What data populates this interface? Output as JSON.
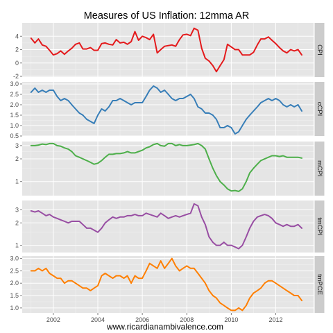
{
  "chart_data": {
    "type": "line",
    "title": "Measures of US Inflation: 12mma AR",
    "caption": "www.ricardianambivalence.com",
    "xlabel": "",
    "ylabel": "",
    "x_tick_labels": [
      "2002",
      "2004",
      "2006",
      "2008",
      "2010",
      "2012"
    ],
    "xlim": [
      2000.6,
      2013.7
    ],
    "grid": true,
    "facets": [
      {
        "name": "CPI",
        "color": "#e41a1c",
        "log_scale": false,
        "ylim": [
          -2.1,
          6.0
        ],
        "y_ticks": [
          -2,
          0,
          2,
          4
        ],
        "y_tick_labels": [
          "-2",
          "0",
          "2",
          "4"
        ],
        "x": [
          2001.0,
          2001.17,
          2001.33,
          2001.5,
          2001.67,
          2001.83,
          2002.0,
          2002.17,
          2002.33,
          2002.5,
          2002.67,
          2002.83,
          2003.0,
          2003.17,
          2003.33,
          2003.5,
          2003.67,
          2003.83,
          2004.0,
          2004.17,
          2004.33,
          2004.5,
          2004.67,
          2004.83,
          2005.0,
          2005.17,
          2005.33,
          2005.5,
          2005.67,
          2005.83,
          2006.0,
          2006.17,
          2006.33,
          2006.5,
          2006.67,
          2006.83,
          2007.0,
          2007.17,
          2007.33,
          2007.5,
          2007.67,
          2007.83,
          2008.0,
          2008.17,
          2008.33,
          2008.5,
          2008.67,
          2008.83,
          2009.0,
          2009.17,
          2009.33,
          2009.5,
          2009.67,
          2009.83,
          2010.0,
          2010.17,
          2010.33,
          2010.5,
          2010.67,
          2010.83,
          2011.0,
          2011.17,
          2011.33,
          2011.5,
          2011.67,
          2011.83,
          2012.0,
          2012.17,
          2012.33,
          2012.5,
          2012.67,
          2012.83,
          2013.0,
          2013.17
        ],
        "y": [
          3.7,
          3.0,
          3.6,
          2.7,
          2.5,
          1.9,
          1.2,
          1.4,
          1.8,
          1.3,
          1.8,
          2.2,
          2.8,
          3.0,
          2.1,
          2.1,
          2.3,
          1.9,
          1.9,
          2.9,
          3.0,
          2.8,
          2.7,
          3.5,
          3.0,
          3.1,
          2.8,
          3.2,
          4.7,
          3.4,
          4.0,
          3.8,
          3.5,
          4.3,
          1.5,
          2.0,
          2.5,
          2.6,
          2.7,
          2.5,
          3.5,
          4.2,
          4.3,
          4.1,
          5.2,
          4.9,
          2.2,
          0.7,
          0.3,
          -0.4,
          -1.3,
          -0.4,
          0.5,
          2.8,
          2.4,
          2.0,
          2.0,
          1.2,
          1.2,
          1.2,
          1.6,
          2.7,
          3.6,
          3.6,
          3.9,
          3.4,
          2.9,
          2.3,
          1.8,
          1.5,
          2.0,
          1.8,
          2.0,
          1.2
        ]
      },
      {
        "name": "cCPI",
        "color": "#377eb8",
        "log_scale": false,
        "ylim": [
          0.5,
          3.1
        ],
        "y_ticks": [
          0.5,
          1.0,
          1.5,
          2.0,
          2.5,
          3.0
        ],
        "y_tick_labels": [
          "0.5",
          "1.0",
          "1.5",
          "2.0",
          "2.5",
          "3.0"
        ],
        "x": [
          2001.0,
          2001.17,
          2001.33,
          2001.5,
          2001.67,
          2001.83,
          2002.0,
          2002.17,
          2002.33,
          2002.5,
          2002.67,
          2002.83,
          2003.0,
          2003.17,
          2003.33,
          2003.5,
          2003.67,
          2003.83,
          2004.0,
          2004.17,
          2004.33,
          2004.5,
          2004.67,
          2004.83,
          2005.0,
          2005.17,
          2005.33,
          2005.5,
          2005.67,
          2005.83,
          2006.0,
          2006.17,
          2006.33,
          2006.5,
          2006.67,
          2006.83,
          2007.0,
          2007.17,
          2007.33,
          2007.5,
          2007.67,
          2007.83,
          2008.0,
          2008.17,
          2008.33,
          2008.5,
          2008.67,
          2008.83,
          2009.0,
          2009.17,
          2009.33,
          2009.5,
          2009.67,
          2009.83,
          2010.0,
          2010.17,
          2010.33,
          2010.5,
          2010.67,
          2010.83,
          2011.0,
          2011.17,
          2011.33,
          2011.5,
          2011.67,
          2011.83,
          2012.0,
          2012.17,
          2012.33,
          2012.5,
          2012.67,
          2012.83,
          2013.0,
          2013.17
        ],
        "y": [
          2.6,
          2.8,
          2.6,
          2.7,
          2.6,
          2.7,
          2.7,
          2.4,
          2.2,
          2.3,
          2.2,
          2.0,
          1.8,
          1.6,
          1.5,
          1.3,
          1.2,
          1.1,
          1.5,
          1.8,
          1.7,
          1.9,
          2.2,
          2.2,
          2.3,
          2.2,
          2.1,
          2.0,
          2.1,
          2.1,
          2.1,
          2.4,
          2.7,
          2.9,
          2.8,
          2.6,
          2.7,
          2.5,
          2.3,
          2.2,
          2.3,
          2.3,
          2.4,
          2.5,
          2.3,
          1.9,
          1.8,
          1.6,
          1.6,
          1.5,
          1.3,
          0.9,
          0.9,
          1.0,
          0.9,
          0.6,
          0.7,
          1.0,
          1.3,
          1.5,
          1.7,
          1.9,
          2.1,
          2.2,
          2.3,
          2.2,
          2.3,
          2.2,
          2.0,
          1.9,
          2.0,
          1.9,
          2.0,
          1.7
        ]
      },
      {
        "name": "mCPI",
        "color": "#4daf4a",
        "log_scale": true,
        "ylim": [
          0.65,
          3.4
        ],
        "y_ticks": [
          1,
          2,
          3
        ],
        "y_tick_labels": [
          "1",
          "2",
          "3"
        ],
        "x": [
          2001.0,
          2001.17,
          2001.33,
          2001.5,
          2001.67,
          2001.83,
          2002.0,
          2002.17,
          2002.33,
          2002.5,
          2002.67,
          2002.83,
          2003.0,
          2003.17,
          2003.33,
          2003.5,
          2003.67,
          2003.83,
          2004.0,
          2004.17,
          2004.33,
          2004.5,
          2004.67,
          2004.83,
          2005.0,
          2005.17,
          2005.33,
          2005.5,
          2005.67,
          2005.83,
          2006.0,
          2006.17,
          2006.33,
          2006.5,
          2006.67,
          2006.83,
          2007.0,
          2007.17,
          2007.33,
          2007.5,
          2007.67,
          2007.83,
          2008.0,
          2008.17,
          2008.33,
          2008.5,
          2008.67,
          2008.83,
          2009.0,
          2009.17,
          2009.33,
          2009.5,
          2009.67,
          2009.83,
          2010.0,
          2010.17,
          2010.33,
          2010.5,
          2010.67,
          2010.83,
          2011.0,
          2011.17,
          2011.33,
          2011.5,
          2011.67,
          2011.83,
          2012.0,
          2012.17,
          2012.33,
          2012.5,
          2012.67,
          2012.83,
          2013.0,
          2013.17
        ],
        "y": [
          3.0,
          3.0,
          3.05,
          3.15,
          3.1,
          3.2,
          3.2,
          3.0,
          2.95,
          2.8,
          2.7,
          2.5,
          2.2,
          2.1,
          2.0,
          1.9,
          1.8,
          1.7,
          1.75,
          1.9,
          2.1,
          2.3,
          2.3,
          2.35,
          2.35,
          2.4,
          2.5,
          2.4,
          2.4,
          2.5,
          2.6,
          2.8,
          2.9,
          3.1,
          3.2,
          3.0,
          2.95,
          3.2,
          3.2,
          3.0,
          3.1,
          3.0,
          3.0,
          3.05,
          3.1,
          3.2,
          3.0,
          2.7,
          2.0,
          1.5,
          1.2,
          1.0,
          0.9,
          0.8,
          0.75,
          0.76,
          0.74,
          0.8,
          1.0,
          1.3,
          1.5,
          1.7,
          1.9,
          2.0,
          2.1,
          2.2,
          2.2,
          2.15,
          2.2,
          2.1,
          2.1,
          2.1,
          2.1,
          2.05
        ]
      },
      {
        "name": "tmCPI",
        "color": "#984ea3",
        "log_scale": true,
        "ylim": [
          0.8,
          4.0
        ],
        "y_ticks": [
          1,
          2,
          3
        ],
        "y_tick_labels": [
          "1",
          "2",
          "3"
        ],
        "x": [
          2001.0,
          2001.17,
          2001.33,
          2001.5,
          2001.67,
          2001.83,
          2002.0,
          2002.17,
          2002.33,
          2002.5,
          2002.67,
          2002.83,
          2003.0,
          2003.17,
          2003.33,
          2003.5,
          2003.67,
          2003.83,
          2004.0,
          2004.17,
          2004.33,
          2004.5,
          2004.67,
          2004.83,
          2005.0,
          2005.17,
          2005.33,
          2005.5,
          2005.67,
          2005.83,
          2006.0,
          2006.17,
          2006.33,
          2006.5,
          2006.67,
          2006.83,
          2007.0,
          2007.17,
          2007.33,
          2007.5,
          2007.67,
          2007.83,
          2008.0,
          2008.17,
          2008.33,
          2008.5,
          2008.67,
          2008.83,
          2009.0,
          2009.17,
          2009.33,
          2009.5,
          2009.67,
          2009.83,
          2010.0,
          2010.17,
          2010.33,
          2010.5,
          2010.67,
          2010.83,
          2011.0,
          2011.17,
          2011.33,
          2011.5,
          2011.67,
          2011.83,
          2012.0,
          2012.17,
          2012.33,
          2012.5,
          2012.67,
          2012.83,
          2013.0,
          2013.17
        ],
        "y": [
          2.9,
          2.8,
          2.9,
          2.7,
          2.5,
          2.6,
          2.4,
          2.3,
          2.2,
          2.1,
          2.0,
          2.1,
          2.1,
          2.1,
          1.9,
          1.7,
          1.7,
          1.6,
          1.5,
          1.7,
          2.0,
          2.2,
          2.4,
          2.3,
          2.4,
          2.4,
          2.5,
          2.5,
          2.6,
          2.5,
          2.5,
          2.7,
          2.6,
          2.5,
          2.4,
          2.7,
          2.5,
          2.3,
          2.4,
          2.5,
          2.4,
          2.5,
          2.6,
          2.7,
          3.6,
          3.4,
          2.4,
          1.9,
          1.3,
          1.1,
          1.0,
          1.0,
          1.1,
          1.0,
          1.0,
          0.95,
          0.9,
          1.0,
          1.3,
          1.7,
          2.1,
          2.4,
          2.5,
          2.6,
          2.5,
          2.3,
          2.0,
          1.9,
          1.8,
          1.9,
          1.8,
          1.8,
          1.9,
          1.7
        ]
      },
      {
        "name": "tmPCE",
        "color": "#ff7f00",
        "log_scale": false,
        "ylim": [
          0.8,
          3.1
        ],
        "y_ticks": [
          1.0,
          1.5,
          2.0,
          2.5,
          3.0
        ],
        "y_tick_labels": [
          "1.0",
          "1.5",
          "2.0",
          "2.5",
          "3.0"
        ],
        "x": [
          2001.0,
          2001.17,
          2001.33,
          2001.5,
          2001.67,
          2001.83,
          2002.0,
          2002.17,
          2002.33,
          2002.5,
          2002.67,
          2002.83,
          2003.0,
          2003.17,
          2003.33,
          2003.5,
          2003.67,
          2003.83,
          2004.0,
          2004.17,
          2004.33,
          2004.5,
          2004.67,
          2004.83,
          2005.0,
          2005.17,
          2005.33,
          2005.5,
          2005.67,
          2005.83,
          2006.0,
          2006.17,
          2006.33,
          2006.5,
          2006.67,
          2006.83,
          2007.0,
          2007.17,
          2007.33,
          2007.5,
          2007.67,
          2007.83,
          2008.0,
          2008.17,
          2008.33,
          2008.5,
          2008.67,
          2008.83,
          2009.0,
          2009.17,
          2009.33,
          2009.5,
          2009.67,
          2009.83,
          2010.0,
          2010.17,
          2010.33,
          2010.5,
          2010.67,
          2010.83,
          2011.0,
          2011.17,
          2011.33,
          2011.5,
          2011.67,
          2011.83,
          2012.0,
          2012.17,
          2012.33,
          2012.5,
          2012.67,
          2012.83,
          2013.0,
          2013.17
        ],
        "y": [
          2.5,
          2.5,
          2.6,
          2.5,
          2.6,
          2.4,
          2.3,
          2.2,
          2.2,
          2.0,
          2.1,
          2.1,
          2.0,
          1.9,
          1.8,
          1.8,
          1.7,
          1.8,
          1.9,
          2.3,
          2.4,
          2.3,
          2.2,
          2.3,
          2.3,
          2.2,
          2.3,
          2.0,
          2.3,
          2.2,
          2.2,
          2.5,
          2.8,
          2.7,
          2.6,
          2.9,
          2.6,
          2.8,
          3.0,
          2.7,
          2.5,
          2.6,
          2.7,
          2.6,
          2.6,
          2.4,
          2.2,
          2.0,
          1.7,
          1.5,
          1.4,
          1.2,
          1.1,
          1.0,
          0.9,
          0.9,
          1.0,
          0.9,
          1.1,
          1.4,
          1.6,
          1.7,
          1.8,
          2.0,
          2.1,
          2.1,
          2.0,
          1.9,
          1.8,
          1.7,
          1.6,
          1.5,
          1.5,
          1.3
        ]
      }
    ]
  }
}
